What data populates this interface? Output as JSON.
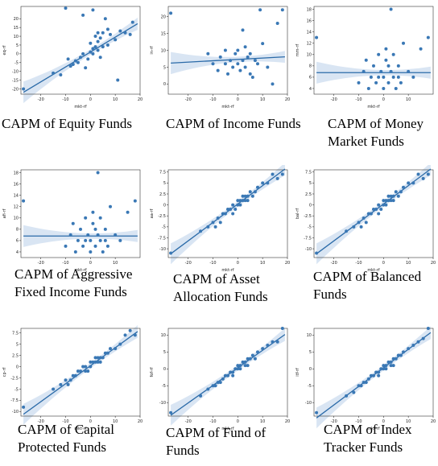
{
  "style": {
    "point_color": "#3a78b5",
    "line_color": "#2a6aa8",
    "band_color": "#cfdff0",
    "axis_color": "#333333"
  },
  "chart_data": [
    {
      "type": "scatter",
      "title": "CAPM of Equity Funds",
      "xlabel": "mkt-rf",
      "ylabel": "eq-rf",
      "xlim": [
        -28,
        20
      ],
      "ylim": [
        -23,
        27
      ],
      "xticks": [
        -20,
        -10,
        0,
        10,
        20
      ],
      "yticks": [
        -20,
        -15,
        -10,
        -5,
        0,
        5,
        10,
        15,
        20
      ],
      "regression": {
        "slope": 0.85,
        "intercept": 1.0
      },
      "points": [
        [
          -27,
          -20
        ],
        [
          -15,
          -11
        ],
        [
          -12,
          -12
        ],
        [
          -10,
          26
        ],
        [
          -9,
          -3
        ],
        [
          -8,
          -7
        ],
        [
          -7,
          -6
        ],
        [
          -6,
          -4
        ],
        [
          -5,
          -5
        ],
        [
          -4,
          -2
        ],
        [
          -3,
          0
        ],
        [
          -2,
          -8
        ],
        [
          -1,
          -3
        ],
        [
          0,
          1
        ],
        [
          0,
          6
        ],
        [
          1,
          0
        ],
        [
          1,
          3
        ],
        [
          2,
          4
        ],
        [
          2,
          10
        ],
        [
          3,
          2
        ],
        [
          3,
          7
        ],
        [
          3,
          12
        ],
        [
          4,
          -2
        ],
        [
          4,
          9
        ],
        [
          5,
          4
        ],
        [
          5,
          12
        ],
        [
          6,
          20
        ],
        [
          7,
          5
        ],
        [
          7,
          14
        ],
        [
          8,
          11
        ],
        [
          10,
          8
        ],
        [
          11,
          -15
        ],
        [
          12,
          13
        ],
        [
          14,
          12
        ],
        [
          16,
          11
        ],
        [
          17,
          18
        ],
        [
          -3,
          22
        ],
        [
          1,
          25
        ]
      ]
    },
    {
      "type": "scatter",
      "title": "CAPM of Income Funds",
      "xlabel": "mkt-rf",
      "ylabel": "in-rf",
      "xlim": [
        -28,
        20
      ],
      "ylim": [
        -3,
        23
      ],
      "xticks": [
        -20,
        -10,
        0,
        10,
        20
      ],
      "yticks": [
        0,
        5,
        10,
        15,
        20
      ],
      "regression": {
        "slope": 0.04,
        "intercept": 7.3
      },
      "points": [
        [
          -27,
          21
        ],
        [
          -12,
          9
        ],
        [
          -10,
          6
        ],
        [
          -8,
          4
        ],
        [
          -7,
          8
        ],
        [
          -5,
          6
        ],
        [
          -4,
          3
        ],
        [
          -3,
          7
        ],
        [
          -2,
          5
        ],
        [
          -1,
          9
        ],
        [
          0,
          6
        ],
        [
          0,
          10
        ],
        [
          1,
          4
        ],
        [
          2,
          7
        ],
        [
          2,
          16
        ],
        [
          3,
          5
        ],
        [
          3,
          11
        ],
        [
          4,
          8
        ],
        [
          5,
          3
        ],
        [
          5,
          9
        ],
        [
          6,
          2
        ],
        [
          7,
          7
        ],
        [
          8,
          6
        ],
        [
          9,
          22
        ],
        [
          10,
          12
        ],
        [
          12,
          5
        ],
        [
          14,
          0
        ],
        [
          16,
          18
        ],
        [
          18,
          22
        ],
        [
          -5,
          10
        ]
      ]
    },
    {
      "type": "scatter",
      "title": "CAPM of Money Market Funds",
      "xlabel": "mkt-rf",
      "ylabel": "mm-rf",
      "xlim": [
        -28,
        20
      ],
      "ylim": [
        3,
        18.5
      ],
      "xticks": [
        -20,
        -10,
        0,
        10
      ],
      "yticks": [
        4,
        6,
        8,
        10,
        12,
        14,
        16,
        18
      ],
      "regression": {
        "slope": 0.0,
        "intercept": 6.8
      },
      "points": [
        [
          -27,
          13
        ],
        [
          -10,
          5
        ],
        [
          -8,
          7
        ],
        [
          -7,
          9
        ],
        [
          -5,
          6
        ],
        [
          -4,
          8
        ],
        [
          -3,
          5
        ],
        [
          -2,
          10
        ],
        [
          -1,
          7
        ],
        [
          0,
          4
        ],
        [
          0,
          6
        ],
        [
          1,
          9
        ],
        [
          1,
          11
        ],
        [
          2,
          5
        ],
        [
          2,
          8
        ],
        [
          3,
          7
        ],
        [
          3,
          18
        ],
        [
          4,
          6
        ],
        [
          4,
          10
        ],
        [
          5,
          4
        ],
        [
          6,
          8
        ],
        [
          7,
          5
        ],
        [
          8,
          12
        ],
        [
          10,
          7
        ],
        [
          12,
          6
        ],
        [
          15,
          11
        ],
        [
          18,
          13
        ],
        [
          -6,
          4
        ],
        [
          -2,
          6
        ],
        [
          6,
          6
        ]
      ]
    },
    {
      "type": "scatter",
      "title": "CAPM of Aggressive Fixed Income Funds",
      "xlabel": "mkt-rf",
      "ylabel": "afi-rf",
      "xlim": [
        -28,
        20
      ],
      "ylim": [
        3,
        18.5
      ],
      "xticks": [
        -20,
        -10,
        0,
        10
      ],
      "yticks": [
        4,
        6,
        8,
        10,
        12,
        14,
        16,
        18
      ],
      "regression": {
        "slope": 0.0,
        "intercept": 6.8
      },
      "points": [
        [
          -27,
          13
        ],
        [
          -10,
          5
        ],
        [
          -8,
          7
        ],
        [
          -7,
          9
        ],
        [
          -5,
          6
        ],
        [
          -4,
          8
        ],
        [
          -3,
          5
        ],
        [
          -2,
          10
        ],
        [
          -1,
          7
        ],
        [
          0,
          4
        ],
        [
          0,
          6
        ],
        [
          1,
          9
        ],
        [
          1,
          11
        ],
        [
          2,
          5
        ],
        [
          2,
          8
        ],
        [
          3,
          7
        ],
        [
          3,
          18
        ],
        [
          4,
          6
        ],
        [
          4,
          10
        ],
        [
          5,
          4
        ],
        [
          6,
          8
        ],
        [
          7,
          5
        ],
        [
          8,
          12
        ],
        [
          10,
          7
        ],
        [
          12,
          6
        ],
        [
          15,
          11
        ],
        [
          18,
          13
        ],
        [
          -6,
          4
        ],
        [
          -2,
          6
        ],
        [
          6,
          6
        ]
      ]
    },
    {
      "type": "scatter",
      "title": "CAPM of Asset Allocation Funds",
      "xlabel": "mkt-rf",
      "ylabel": "aa-rf",
      "xlim": [
        -28,
        20
      ],
      "ylim": [
        -12,
        8
      ],
      "xticks": [
        -20,
        -10,
        0,
        10,
        20
      ],
      "yticks": [
        -10,
        -7.5,
        -5,
        -2.5,
        0,
        2.5,
        5,
        7.5
      ],
      "regression": {
        "slope": 0.42,
        "intercept": 0.2
      },
      "points": [
        [
          -27,
          -11
        ],
        [
          -15,
          -6
        ],
        [
          -12,
          -5
        ],
        [
          -10,
          -4
        ],
        [
          -8,
          -3
        ],
        [
          -7,
          -4
        ],
        [
          -6,
          -2
        ],
        [
          -5,
          -2
        ],
        [
          -4,
          -1
        ],
        [
          -3,
          -1
        ],
        [
          -2,
          0
        ],
        [
          -1,
          -1
        ],
        [
          0,
          0
        ],
        [
          0,
          1
        ],
        [
          1,
          1
        ],
        [
          1,
          0
        ],
        [
          2,
          1
        ],
        [
          2,
          2
        ],
        [
          3,
          1
        ],
        [
          3,
          2
        ],
        [
          4,
          2
        ],
        [
          5,
          3
        ],
        [
          6,
          2
        ],
        [
          7,
          3
        ],
        [
          8,
          4
        ],
        [
          10,
          5
        ],
        [
          12,
          5
        ],
        [
          14,
          7
        ],
        [
          16,
          6
        ],
        [
          18,
          7
        ],
        [
          -9,
          -5
        ],
        [
          -2,
          -2
        ],
        [
          4,
          1
        ]
      ]
    },
    {
      "type": "scatter",
      "title": "CAPM of Balanced Funds",
      "xlabel": "mkt-rf",
      "ylabel": "bal-rf",
      "xlim": [
        -28,
        20
      ],
      "ylim": [
        -12,
        8
      ],
      "xticks": [
        -20,
        -10,
        0,
        10,
        20
      ],
      "yticks": [
        -10,
        -7.5,
        -5,
        -2.5,
        0,
        2.5,
        5,
        7.5
      ],
      "regression": {
        "slope": 0.42,
        "intercept": 0.2
      },
      "points": [
        [
          -27,
          -11
        ],
        [
          -15,
          -6
        ],
        [
          -12,
          -5
        ],
        [
          -10,
          -4
        ],
        [
          -8,
          -3
        ],
        [
          -7,
          -4
        ],
        [
          -6,
          -2
        ],
        [
          -5,
          -2
        ],
        [
          -4,
          -1
        ],
        [
          -3,
          -1
        ],
        [
          -2,
          0
        ],
        [
          -1,
          -1
        ],
        [
          0,
          0
        ],
        [
          0,
          1
        ],
        [
          1,
          1
        ],
        [
          1,
          0
        ],
        [
          2,
          1
        ],
        [
          2,
          2
        ],
        [
          3,
          1
        ],
        [
          3,
          2
        ],
        [
          4,
          2
        ],
        [
          5,
          3
        ],
        [
          6,
          2
        ],
        [
          7,
          3
        ],
        [
          8,
          4
        ],
        [
          10,
          5
        ],
        [
          12,
          5
        ],
        [
          14,
          7
        ],
        [
          16,
          6
        ],
        [
          18,
          7
        ],
        [
          -9,
          -5
        ],
        [
          -2,
          -2
        ],
        [
          4,
          1
        ]
      ]
    },
    {
      "type": "scatter",
      "title": "CAPM of Capital Protected Funds",
      "xlabel": "mkt-rf",
      "ylabel": "cp-rf",
      "xlim": [
        -28,
        20
      ],
      "ylim": [
        -11,
        8.5
      ],
      "xticks": [
        -20,
        -10,
        0,
        10,
        20
      ],
      "yticks": [
        -10,
        -7.5,
        -5,
        -2.5,
        0,
        2.5,
        5,
        7.5
      ],
      "regression": {
        "slope": 0.4,
        "intercept": 0.2
      },
      "points": [
        [
          -27,
          -9
        ],
        [
          -15,
          -5
        ],
        [
          -12,
          -4
        ],
        [
          -10,
          -3
        ],
        [
          -8,
          -3
        ],
        [
          -7,
          -2
        ],
        [
          -6,
          -2
        ],
        [
          -5,
          -1
        ],
        [
          -4,
          -1
        ],
        [
          -3,
          0
        ],
        [
          -2,
          0
        ],
        [
          -1,
          -1
        ],
        [
          0,
          0
        ],
        [
          0,
          1
        ],
        [
          1,
          1
        ],
        [
          2,
          1
        ],
        [
          2,
          2
        ],
        [
          3,
          1
        ],
        [
          3,
          2
        ],
        [
          4,
          2
        ],
        [
          5,
          2
        ],
        [
          6,
          3
        ],
        [
          7,
          3
        ],
        [
          8,
          4
        ],
        [
          10,
          4
        ],
        [
          12,
          5
        ],
        [
          14,
          7
        ],
        [
          16,
          8
        ],
        [
          18,
          7
        ],
        [
          -9,
          -4
        ],
        [
          -2,
          -1
        ],
        [
          4,
          1
        ]
      ]
    },
    {
      "type": "scatter",
      "title": "CAPM of Fund of Funds",
      "xlabel": "mkt-rf",
      "ylabel": "fof-rf",
      "xlim": [
        -28,
        20
      ],
      "ylim": [
        -14,
        12
      ],
      "xticks": [
        -20,
        -10,
        0,
        10,
        20
      ],
      "yticks": [
        -10,
        -5,
        0,
        5,
        10
      ],
      "regression": {
        "slope": 0.52,
        "intercept": 0.3
      },
      "points": [
        [
          -27,
          -13
        ],
        [
          -15,
          -8
        ],
        [
          -12,
          -6
        ],
        [
          -10,
          -5
        ],
        [
          -8,
          -4
        ],
        [
          -7,
          -4
        ],
        [
          -6,
          -3
        ],
        [
          -5,
          -2
        ],
        [
          -4,
          -2
        ],
        [
          -3,
          -1
        ],
        [
          -2,
          -1
        ],
        [
          -1,
          0
        ],
        [
          0,
          0
        ],
        [
          0,
          1
        ],
        [
          1,
          1
        ],
        [
          1,
          0
        ],
        [
          2,
          2
        ],
        [
          3,
          1
        ],
        [
          3,
          2
        ],
        [
          4,
          3
        ],
        [
          5,
          3
        ],
        [
          6,
          4
        ],
        [
          7,
          3
        ],
        [
          8,
          5
        ],
        [
          10,
          6
        ],
        [
          12,
          7
        ],
        [
          14,
          8
        ],
        [
          16,
          8
        ],
        [
          18,
          12
        ],
        [
          -9,
          -5
        ],
        [
          -2,
          -2
        ],
        [
          4,
          1
        ]
      ]
    },
    {
      "type": "scatter",
      "title": "CAPM of Index Tracker Funds",
      "xlabel": "mkt-rf",
      "ylabel": "itf-rf",
      "xlim": [
        -28,
        20
      ],
      "ylim": [
        -14,
        12
      ],
      "xticks": [
        -20,
        -10,
        0,
        10,
        20
      ],
      "yticks": [
        -10,
        -5,
        0,
        5,
        10
      ],
      "regression": {
        "slope": 0.55,
        "intercept": 0.3
      },
      "points": [
        [
          -27,
          -13
        ],
        [
          -15,
          -8
        ],
        [
          -12,
          -7
        ],
        [
          -10,
          -5
        ],
        [
          -8,
          -4
        ],
        [
          -7,
          -4
        ],
        [
          -6,
          -3
        ],
        [
          -5,
          -2
        ],
        [
          -4,
          -2
        ],
        [
          -3,
          -1
        ],
        [
          -2,
          -1
        ],
        [
          -1,
          0
        ],
        [
          0,
          0
        ],
        [
          0,
          1
        ],
        [
          1,
          1
        ],
        [
          1,
          0
        ],
        [
          2,
          2
        ],
        [
          3,
          1
        ],
        [
          3,
          2
        ],
        [
          4,
          3
        ],
        [
          5,
          3
        ],
        [
          6,
          4
        ],
        [
          7,
          4
        ],
        [
          8,
          5
        ],
        [
          10,
          6
        ],
        [
          12,
          7
        ],
        [
          14,
          8
        ],
        [
          16,
          9
        ],
        [
          18,
          12
        ],
        [
          -9,
          -5
        ],
        [
          -2,
          -2
        ],
        [
          4,
          1
        ]
      ]
    }
  ]
}
